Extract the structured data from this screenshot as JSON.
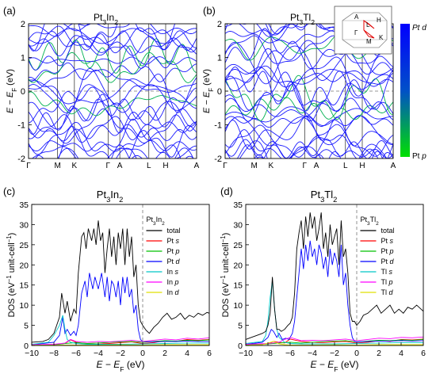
{
  "panels": [
    {
      "label": "(a)"
    },
    {
      "label": "(b)"
    },
    {
      "label": "(c)"
    },
    {
      "label": "(d)"
    }
  ],
  "colorbar": {
    "top_label": "Pt d",
    "bottom_label": "Pt p",
    "colors": [
      "#0000ff",
      "#00e000"
    ]
  },
  "bz_inset": {
    "points": [
      "A",
      "L",
      "H",
      "Γ",
      "M",
      "K"
    ]
  },
  "chart_data": [
    {
      "type": "line",
      "subtype": "band-structure",
      "title": "Pt3In2",
      "ylabel": "E − EF (eV)",
      "ylim": [
        -2,
        2
      ],
      "yticks": [
        -2,
        -1,
        0,
        1,
        2
      ],
      "kpath": [
        "Γ",
        "M",
        "K",
        "Γ",
        "A",
        "L",
        "H",
        "A"
      ],
      "kpos": [
        0,
        0.173,
        0.273,
        0.473,
        0.543,
        0.716,
        0.816,
        1.0
      ],
      "color_scale": "Pt p (green) to Pt d (blue)"
    },
    {
      "type": "line",
      "subtype": "band-structure",
      "title": "Pt3Tl2",
      "ylabel": "E − EF (eV)",
      "ylim": [
        -2,
        2
      ],
      "yticks": [
        -2,
        -1,
        0,
        1,
        2
      ],
      "kpath": [
        "Γ",
        "M",
        "K",
        "Γ",
        "A",
        "L",
        "H",
        "A"
      ],
      "kpos": [
        0,
        0.173,
        0.273,
        0.473,
        0.543,
        0.716,
        0.816,
        1.0
      ],
      "color_scale": "Pt p (green) to Pt d (blue)"
    },
    {
      "type": "line",
      "title": "Pt3In2",
      "legend_title": "Pt3In2",
      "xlabel": "E − EF (eV)",
      "ylabel": "DOS (eV−1 unit-cell−1)",
      "xlim": [
        -10,
        6
      ],
      "ylim": [
        0,
        35
      ],
      "xticks": [
        -10,
        -8,
        -6,
        -4,
        -2,
        0,
        2,
        4,
        6
      ],
      "yticks": [
        0,
        5,
        10,
        15,
        20,
        25,
        30,
        35
      ],
      "series": [
        {
          "name": "total",
          "color": "#000000",
          "x": [
            -10,
            -9.5,
            -9,
            -8.5,
            -8,
            -7.5,
            -7.3,
            -7,
            -6.8,
            -6.5,
            -6.2,
            -6,
            -5.8,
            -5.5,
            -5.3,
            -5.1,
            -4.9,
            -4.6,
            -4.4,
            -4.2,
            -4,
            -3.8,
            -3.6,
            -3.4,
            -3.2,
            -3,
            -2.8,
            -2.6,
            -2.4,
            -2.2,
            -2,
            -1.8,
            -1.6,
            -1.4,
            -1.2,
            -1,
            -0.8,
            -0.6,
            -0.4,
            -0.2,
            0,
            0.3,
            0.6,
            1,
            1.4,
            1.8,
            2.2,
            2.6,
            3,
            3.4,
            3.8,
            4.2,
            4.6,
            5,
            5.4,
            5.8,
            6
          ],
          "values": [
            0.8,
            0.9,
            1,
            1.5,
            3,
            7,
            13,
            8,
            11,
            6,
            9,
            8,
            18,
            27,
            28,
            24,
            29,
            26,
            29,
            25,
            31,
            26,
            28,
            18,
            24,
            29,
            22,
            27,
            20,
            28,
            24,
            29,
            20,
            29,
            22,
            27,
            17,
            20,
            10,
            6,
            5,
            3.8,
            3,
            4.5,
            5.5,
            7,
            8,
            6.5,
            7,
            8,
            6.5,
            7.5,
            7,
            8,
            7.5,
            8.2,
            8
          ]
        },
        {
          "name": "Pt s",
          "color": "#ff0000",
          "x": [
            -10,
            -8,
            -7,
            -6.5,
            -6,
            -5.5,
            -5,
            -4,
            -3,
            -2,
            -1,
            0,
            1,
            2,
            3,
            4,
            5,
            6
          ],
          "values": [
            0.1,
            0.2,
            0.5,
            1.4,
            0.8,
            0.6,
            0.5,
            0.6,
            0.5,
            0.7,
            0.9,
            0.5,
            0.7,
            1.2,
            1,
            1.5,
            1.3,
            1.5
          ]
        },
        {
          "name": "Pt p",
          "color": "#00c000",
          "x": [
            -10,
            -8,
            -7,
            -6,
            -5,
            -4,
            -3,
            -2,
            -1,
            0,
            1,
            2,
            3,
            4,
            5,
            6
          ],
          "values": [
            0.1,
            0.2,
            0.5,
            0.7,
            0.5,
            0.6,
            0.8,
            0.9,
            1,
            0.8,
            1,
            1.2,
            1.1,
            1.3,
            1.2,
            1.4
          ]
        },
        {
          "name": "Pt d",
          "color": "#0000ff",
          "x": [
            -10,
            -8,
            -7.5,
            -7.2,
            -7,
            -6.8,
            -6.5,
            -6.2,
            -6,
            -5.8,
            -5.5,
            -5.2,
            -5,
            -4.8,
            -4.5,
            -4.3,
            -4,
            -3.7,
            -3.4,
            -3.2,
            -3,
            -2.8,
            -2.6,
            -2.4,
            -2.2,
            -2,
            -1.8,
            -1.6,
            -1.4,
            -1.2,
            -1,
            -0.8,
            -0.6,
            -0.4,
            -0.2,
            0,
            1,
            2,
            3,
            4,
            5,
            6
          ],
          "values": [
            0.2,
            0.8,
            2.5,
            7,
            3,
            4,
            2.5,
            3.5,
            2.5,
            5,
            13,
            16,
            12,
            18,
            14,
            17,
            14,
            18,
            12,
            17,
            11,
            16,
            15,
            12,
            16,
            10,
            17,
            13,
            17,
            12,
            14,
            8,
            10,
            4,
            1.5,
            1,
            0.9,
            1,
            1,
            1.1,
            1,
            1
          ]
        },
        {
          "name": "In s",
          "color": "#00c8c8",
          "x": [
            -10,
            -8.5,
            -8,
            -7.5,
            -7.2,
            -7,
            -6.8,
            -6.5,
            -6,
            -5,
            -4,
            -2,
            0,
            2,
            4,
            6
          ],
          "values": [
            0.3,
            0.8,
            2.5,
            5,
            7.5,
            4,
            1.5,
            0.8,
            0.5,
            0.3,
            0.3,
            0.3,
            0.4,
            0.5,
            0.6,
            0.6
          ]
        },
        {
          "name": "In p",
          "color": "#ff00ff",
          "x": [
            -10,
            -8,
            -7,
            -6.5,
            -6,
            -5,
            -4,
            -3,
            -2,
            -1,
            0,
            1,
            2,
            3,
            4,
            5,
            6
          ],
          "values": [
            0.2,
            0.3,
            0.6,
            1.5,
            1,
            0.8,
            1,
            0.9,
            1.1,
            1.3,
            1,
            1.3,
            1.6,
            1.4,
            1.8,
            1.6,
            1.9
          ]
        },
        {
          "name": "In d",
          "color": "#e0e000",
          "x": [
            -10,
            -6,
            -4,
            -2,
            0,
            2,
            4,
            6
          ],
          "values": [
            0.05,
            0.1,
            0.1,
            0.15,
            0.1,
            0.2,
            0.2,
            0.2
          ]
        }
      ]
    },
    {
      "type": "line",
      "title": "Pt3Tl2",
      "legend_title": "Pt3Tl2",
      "xlabel": "E − EF (eV)",
      "ylabel": "DOS (eV−1 unit-cell−1)",
      "xlim": [
        -10,
        6
      ],
      "ylim": [
        0,
        35
      ],
      "xticks": [
        -10,
        -8,
        -6,
        -4,
        -2,
        0,
        2,
        4,
        6
      ],
      "yticks": [
        0,
        5,
        10,
        15,
        20,
        25,
        30,
        35
      ],
      "series": [
        {
          "name": "total",
          "color": "#000000",
          "x": [
            -10,
            -9.5,
            -9,
            -8.5,
            -8.2,
            -8,
            -7.8,
            -7.6,
            -7.4,
            -7.2,
            -7,
            -6.8,
            -6.5,
            -6.2,
            -6,
            -5.8,
            -5.6,
            -5.4,
            -5.2,
            -5,
            -4.8,
            -4.6,
            -4.4,
            -4.2,
            -4,
            -3.8,
            -3.6,
            -3.4,
            -3.2,
            -3,
            -2.8,
            -2.6,
            -2.4,
            -2.2,
            -2,
            -1.8,
            -1.6,
            -1.4,
            -1.2,
            -1,
            -0.8,
            -0.6,
            -0.4,
            -0.2,
            0,
            0.3,
            0.6,
            1,
            1.4,
            1.8,
            2.2,
            2.6,
            3,
            3.4,
            3.8,
            4.2,
            4.6,
            5,
            5.4,
            5.8,
            6
          ],
          "values": [
            1.5,
            2,
            2.5,
            3,
            3.5,
            5,
            8,
            17,
            9,
            4,
            4,
            3.5,
            4,
            5,
            5.5,
            7,
            13,
            24,
            28,
            31,
            24,
            32,
            27,
            33,
            29,
            32,
            26,
            29,
            33,
            24,
            28,
            22,
            30,
            25,
            27,
            29,
            20,
            31,
            22,
            24,
            18,
            8,
            6,
            6,
            5,
            6,
            7.5,
            8,
            9,
            10,
            8,
            9,
            10,
            8,
            9,
            8,
            9.5,
            9,
            10,
            9,
            8.5
          ]
        },
        {
          "name": "Pt s",
          "color": "#ff0000",
          "x": [
            -10,
            -8,
            -7.5,
            -7,
            -6.5,
            -6,
            -5,
            -4,
            -3,
            -2,
            -1,
            0,
            1,
            2,
            3,
            4,
            5,
            6
          ],
          "values": [
            0.1,
            0.4,
            1,
            0.8,
            0.6,
            1.6,
            1,
            0.8,
            0.7,
            0.9,
            1,
            0.6,
            0.8,
            1.2,
            1,
            1.5,
            1.4,
            1.6
          ]
        },
        {
          "name": "Pt p",
          "color": "#00c000",
          "x": [
            -10,
            -8,
            -7,
            -6,
            -5,
            -4,
            -3,
            -2,
            -1,
            0,
            1,
            2,
            3,
            4,
            5,
            6
          ],
          "values": [
            0.2,
            0.4,
            0.6,
            0.8,
            0.6,
            0.8,
            1,
            1.1,
            1.2,
            0.9,
            1.1,
            1.3,
            1.2,
            1.4,
            1.3,
            1.5
          ]
        },
        {
          "name": "Pt d",
          "color": "#0000ff",
          "x": [
            -10,
            -8.5,
            -8,
            -7.7,
            -7.5,
            -7.2,
            -7,
            -6.7,
            -6.4,
            -6.1,
            -5.8,
            -5.6,
            -5.4,
            -5.2,
            -5,
            -4.8,
            -4.6,
            -4.4,
            -4.2,
            -4,
            -3.8,
            -3.6,
            -3.4,
            -3.2,
            -3,
            -2.8,
            -2.6,
            -2.4,
            -2.2,
            -2,
            -1.8,
            -1.6,
            -1.4,
            -1.2,
            -1,
            -0.8,
            -0.6,
            -0.4,
            -0.2,
            0,
            1,
            2,
            3,
            4,
            5,
            6
          ],
          "values": [
            0.3,
            0.8,
            2,
            4,
            3.5,
            2,
            3,
            1.5,
            1.8,
            1.5,
            3,
            6,
            12,
            18,
            24,
            19,
            25,
            21,
            26,
            22,
            24,
            20,
            25,
            23,
            19,
            22,
            17,
            24,
            20,
            23,
            21,
            17,
            25,
            15,
            18,
            10,
            5,
            2,
            1,
            0.9,
            1,
            1.1,
            1.1,
            1.2,
            1.1,
            1.2
          ]
        },
        {
          "name": "Tl s",
          "color": "#00c8c8",
          "x": [
            -10,
            -8.5,
            -8.2,
            -8,
            -7.8,
            -7.6,
            -7.4,
            -7.2,
            -7,
            -6.5,
            -6,
            -5,
            -4,
            -2,
            0,
            2,
            4,
            6
          ],
          "values": [
            0.5,
            1,
            2.5,
            6,
            12,
            16,
            9,
            4,
            2,
            0.8,
            0.5,
            0.4,
            0.4,
            0.4,
            0.5,
            0.6,
            0.7,
            0.7
          ]
        },
        {
          "name": "Tl p",
          "color": "#ff00ff",
          "x": [
            -10,
            -8,
            -7,
            -6.5,
            -6,
            -5,
            -4,
            -3,
            -2,
            -1,
            0,
            1,
            2,
            3,
            4,
            5,
            6
          ],
          "values": [
            0.3,
            0.5,
            0.8,
            1.5,
            2,
            1.2,
            1.3,
            1.2,
            1.4,
            1.6,
            1.2,
            1.5,
            1.8,
            1.7,
            2,
            1.9,
            2.1
          ]
        },
        {
          "name": "Tl d",
          "color": "#e0e000",
          "x": [
            -10,
            -8.5,
            -8,
            -7.5,
            -7,
            -6.5,
            -6,
            -4,
            -2,
            0,
            2,
            4,
            6
          ],
          "values": [
            0.05,
            0.2,
            0.6,
            1,
            0.4,
            0.2,
            0.1,
            0.1,
            0.15,
            0.1,
            0.2,
            0.2,
            0.2
          ]
        }
      ]
    }
  ]
}
